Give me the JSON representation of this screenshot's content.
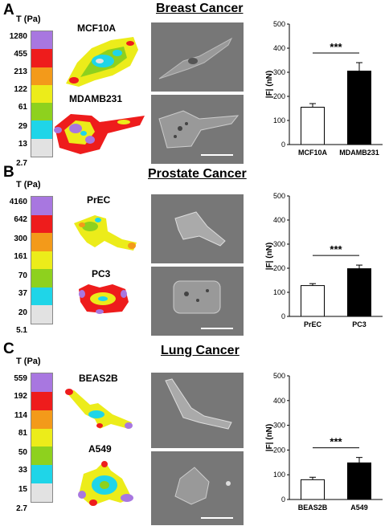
{
  "panels": [
    {
      "letter": "A",
      "title": "Breast Cancer",
      "scale_label": "T (Pa)",
      "scale_ticks": [
        "1280",
        "455",
        "213",
        "122",
        "61",
        "29",
        "13",
        "2.7"
      ],
      "cells": [
        {
          "name": "MCF10A"
        },
        {
          "name": "MDAMB231"
        }
      ],
      "chart_data": {
        "type": "bar",
        "categories": [
          "MCF10A",
          "MDAMB231"
        ],
        "values": [
          155,
          305
        ],
        "errors": [
          15,
          35
        ],
        "bar_colors": [
          "#ffffff",
          "#000000"
        ],
        "ylabel": "|F| (nN)",
        "ylim": [
          0,
          500
        ],
        "yticks": [
          "0",
          "100",
          "200",
          "300",
          "400",
          "500"
        ],
        "significance": "***"
      }
    },
    {
      "letter": "B",
      "title": "Prostate Cancer",
      "scale_label": "T (Pa)",
      "scale_ticks": [
        "4160",
        "642",
        "300",
        "161",
        "70",
        "37",
        "20",
        "5.1"
      ],
      "cells": [
        {
          "name": "PrEC"
        },
        {
          "name": "PC3"
        }
      ],
      "chart_data": {
        "type": "bar",
        "categories": [
          "PrEC",
          "PC3"
        ],
        "values": [
          128,
          198
        ],
        "errors": [
          8,
          15
        ],
        "bar_colors": [
          "#ffffff",
          "#000000"
        ],
        "ylabel": "|F| (nN)",
        "ylim": [
          0,
          500
        ],
        "yticks": [
          "0",
          "100",
          "200",
          "300",
          "400",
          "500"
        ],
        "significance": "***"
      }
    },
    {
      "letter": "C",
      "title": "Lung Cancer",
      "scale_label": "T (Pa)",
      "scale_ticks": [
        "559",
        "192",
        "114",
        "81",
        "50",
        "33",
        "15",
        "2.7"
      ],
      "cells": [
        {
          "name": "BEAS2B"
        },
        {
          "name": "A549"
        }
      ],
      "chart_data": {
        "type": "bar",
        "categories": [
          "BEAS2B",
          "A549"
        ],
        "values": [
          80,
          148
        ],
        "errors": [
          10,
          22
        ],
        "bar_colors": [
          "#ffffff",
          "#000000"
        ],
        "ylabel": "|F| (nN)",
        "ylim": [
          0,
          500
        ],
        "yticks": [
          "0",
          "100",
          "200",
          "300",
          "400",
          "500"
        ],
        "significance": "***"
      }
    }
  ],
  "colorbar_colors": [
    "#a877e0",
    "#ee1c1c",
    "#f39a1a",
    "#ecec1a",
    "#8ed11e",
    "#1fd5e8",
    "#e2e2e2"
  ]
}
